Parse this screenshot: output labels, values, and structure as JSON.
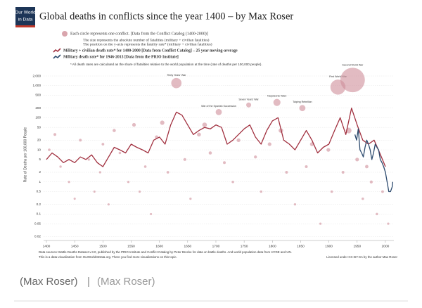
{
  "logo": [
    "Our World",
    "in Data"
  ],
  "chart_data": {
    "type": "scatter",
    "title": "Global deaths in conflicts since the year 1400 – by Max Roser",
    "notes": [
      "The size represents the absolute number of fatalities (military + civilian fatalities)",
      "The position on the y-axis represents the fatality rate* (military + civilian fatalities)",
      "* All death rates are calculated as the share of fatalities relative to the world population at the time (rate of deaths per 100,000 people)."
    ],
    "ylabel": "Rate of Deaths per 100,000 People",
    "log_y": true,
    "grid": true,
    "xlim": [
      1395,
      2015
    ],
    "ylim": [
      0.015,
      3000
    ],
    "xticks": [
      1400,
      1450,
      1500,
      1550,
      1600,
      1650,
      1700,
      1750,
      1800,
      1850,
      1900,
      1950,
      2000
    ],
    "yticks": [
      {
        "value": 2000,
        "label": "2,000"
      },
      {
        "value": 1000,
        "label": "1,000"
      },
      500,
      200,
      100,
      50,
      20,
      10,
      5,
      2,
      1,
      0.5,
      0.2,
      0.1,
      0.05,
      0.02
    ],
    "series": [
      {
        "name": "Each circle represents one conflict. [Data from the Conflict Catalog (1400-2000)]",
        "type": "scatter",
        "color": "#cf8e99",
        "x": [
          1405,
          1415,
          1425,
          1440,
          1450,
          1460,
          1475,
          1485,
          1495,
          1500,
          1510,
          1520,
          1530,
          1545,
          1555,
          1565,
          1575,
          1585,
          1595,
          1605,
          1615,
          1630,
          1645,
          1655,
          1670,
          1680,
          1690,
          1705,
          1715,
          1730,
          1740,
          1758,
          1770,
          1780,
          1795,
          1808,
          1815,
          1825,
          1840,
          1853,
          1860,
          1870,
          1885,
          1899,
          1905,
          1916,
          1925,
          1935,
          1942,
          1950,
          1960,
          1967,
          1975,
          1985,
          1995,
          2005
        ],
        "values": [
          10,
          30,
          3,
          1,
          0.3,
          20,
          5,
          0.5,
          2,
          15,
          0.2,
          40,
          8,
          1,
          60,
          0.5,
          3,
          0.1,
          25,
          70,
          2,
          1200,
          5,
          0.3,
          30,
          60,
          8,
          150,
          4,
          1,
          20,
          250,
          6,
          0.5,
          15,
          300,
          40,
          2,
          0.2,
          200,
          3,
          15,
          0.05,
          10,
          0.5,
          900,
          2,
          40,
          1500,
          5,
          0.3,
          3,
          1,
          0.1,
          0.5,
          0.05
        ],
        "sizes": [
          20,
          60,
          5,
          2,
          1,
          50,
          10,
          1,
          5,
          40,
          1,
          150,
          20,
          5,
          300,
          3,
          20,
          1,
          200,
          600,
          30,
          8000,
          80,
          5,
          400,
          800,
          150,
          2000,
          60,
          20,
          300,
          1000,
          100,
          10,
          300,
          3000,
          700,
          50,
          5,
          2000,
          60,
          400,
          5,
          300,
          20,
          20000,
          50,
          1500,
          60000,
          300,
          20,
          200,
          100,
          10,
          40,
          5
        ],
        "labels": [
          null,
          null,
          null,
          null,
          null,
          null,
          null,
          null,
          null,
          null,
          null,
          null,
          null,
          null,
          null,
          null,
          null,
          null,
          null,
          null,
          null,
          "Thirty Years' War",
          null,
          null,
          null,
          null,
          null,
          "War of the Spanish Succession",
          null,
          null,
          null,
          "Seven Years' War",
          null,
          null,
          null,
          "Napoleonic Wars",
          null,
          null,
          null,
          "Taiping Rebellion",
          null,
          null,
          null,
          null,
          null,
          "First World War",
          null,
          null,
          "Second World War",
          null,
          null,
          null,
          null,
          null,
          null,
          null
        ]
      },
      {
        "name": "Military + civilian death rate* for 1400-2000 [Data from Conflict Catalog] – 25 year moving-average",
        "type": "line",
        "color": "#a1303f",
        "x": [
          1400,
          1410,
          1420,
          1430,
          1440,
          1450,
          1460,
          1470,
          1480,
          1490,
          1500,
          1510,
          1520,
          1530,
          1540,
          1550,
          1560,
          1570,
          1580,
          1590,
          1600,
          1610,
          1620,
          1630,
          1640,
          1650,
          1660,
          1670,
          1680,
          1690,
          1700,
          1710,
          1720,
          1730,
          1740,
          1750,
          1760,
          1770,
          1780,
          1790,
          1800,
          1810,
          1820,
          1830,
          1840,
          1850,
          1860,
          1870,
          1880,
          1890,
          1900,
          1910,
          1920,
          1930,
          1940,
          1950,
          1960,
          1970,
          1980,
          1990,
          2000
        ],
        "values": [
          5,
          8,
          6,
          4,
          5,
          4,
          6,
          5,
          7,
          4,
          3,
          6,
          12,
          10,
          8,
          15,
          12,
          10,
          8,
          20,
          25,
          15,
          60,
          150,
          120,
          60,
          30,
          40,
          50,
          45,
          60,
          50,
          15,
          20,
          30,
          45,
          60,
          25,
          15,
          40,
          80,
          100,
          20,
          15,
          10,
          20,
          40,
          20,
          8,
          12,
          15,
          40,
          100,
          30,
          200,
          60,
          20,
          15,
          20,
          8,
          3
        ]
      },
      {
        "name": "Military death rate* for 1946-2013 [Data from the PRIO Institute]",
        "type": "line",
        "color": "#2c4a6e",
        "x": [
          1946,
          1949,
          1952,
          1955,
          1958,
          1961,
          1964,
          1967,
          1970,
          1973,
          1976,
          1979,
          1982,
          1985,
          1988,
          1991,
          1994,
          1997,
          2000,
          2003,
          2006,
          2009,
          2012,
          2013
        ],
        "values": [
          30,
          20,
          45,
          10,
          8,
          6,
          12,
          20,
          15,
          10,
          5,
          8,
          15,
          12,
          10,
          5,
          4,
          3,
          2,
          1,
          0.5,
          0.5,
          0.7,
          1
        ]
      }
    ],
    "sources": [
      "Data sources: Battle Deaths Dataset v.3.0, published by the PRIO Institute and Conflict Catalog by Peter Brecke for data on battle deaths. And world population data from HYDE and UN.",
      "This is a data-visualization from OurWorldInData.org. There you find more visualizations on this topic."
    ],
    "license": "Licensed under CC-BY-SA by the author Max Roser"
  },
  "caption": [
    "(Max Roser)",
    "|",
    "(Max Roser)"
  ]
}
